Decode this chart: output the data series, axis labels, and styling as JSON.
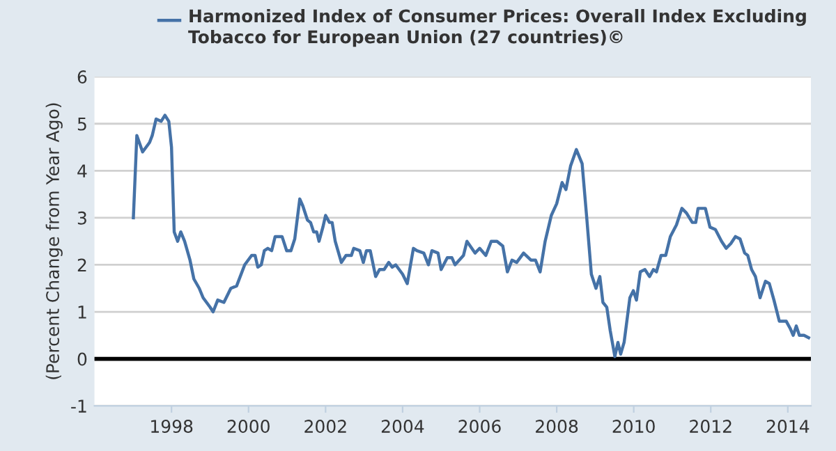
{
  "chart_data": {
    "type": "line",
    "ylabel": "(Percent Change from Year Ago)",
    "x": [
      1997.01,
      1997.1,
      1997.25,
      1997.43,
      1997.5,
      1997.6,
      1997.73,
      1997.83,
      1997.93,
      1998.0,
      1998.07,
      1998.16,
      1998.24,
      1998.34,
      1998.48,
      1998.58,
      1998.72,
      1998.82,
      1999.0,
      1999.08,
      1999.2,
      1999.36,
      1999.54,
      1999.69,
      1999.9,
      2000.08,
      2000.17,
      2000.24,
      2000.33,
      2000.41,
      2000.5,
      2000.6,
      2000.69,
      2000.87,
      2000.99,
      2001.1,
      2001.2,
      2001.33,
      2001.41,
      2001.53,
      2001.61,
      2001.69,
      2001.77,
      2001.83,
      2001.93,
      2002.0,
      2002.1,
      2002.17,
      2002.25,
      2002.41,
      2002.53,
      2002.67,
      2002.73,
      2002.89,
      2002.98,
      2003.06,
      2003.16,
      2003.3,
      2003.4,
      2003.52,
      2003.64,
      2003.73,
      2003.82,
      2004.0,
      2004.12,
      2004.28,
      2004.37,
      2004.55,
      2004.67,
      2004.76,
      2004.92,
      2005.0,
      2005.16,
      2005.28,
      2005.36,
      2005.58,
      2005.67,
      2005.88,
      2006.0,
      2006.16,
      2006.3,
      2006.45,
      2006.6,
      2006.72,
      2006.84,
      2006.96,
      2007.14,
      2007.33,
      2007.45,
      2007.57,
      2007.7,
      2007.86,
      2008.0,
      2008.14,
      2008.24,
      2008.36,
      2008.51,
      2008.66,
      2008.78,
      2008.9,
      2009.02,
      2009.12,
      2009.2,
      2009.3,
      2009.39,
      2009.51,
      2009.59,
      2009.66,
      2009.75,
      2009.9,
      2009.99,
      2010.07,
      2010.17,
      2010.29,
      2010.41,
      2010.51,
      2010.59,
      2010.71,
      2010.83,
      2010.95,
      2011.11,
      2011.25,
      2011.37,
      2011.52,
      2011.61,
      2011.67,
      2011.86,
      2011.98,
      2012.12,
      2012.28,
      2012.4,
      2012.52,
      2012.64,
      2012.76,
      2012.88,
      2012.96,
      2013.06,
      2013.16,
      2013.28,
      2013.42,
      2013.52,
      2013.64,
      2013.78,
      2013.96,
      2014.06,
      2014.14,
      2014.22,
      2014.3,
      2014.42,
      2014.54
    ],
    "series": [
      {
        "name": "Harmonized Index of Consumer Prices: Overall Index Excluding Tobacco for European Union (27 countries)©",
        "color": "#4572a7",
        "values": [
          3.0,
          4.75,
          4.4,
          4.6,
          4.75,
          5.1,
          5.05,
          5.18,
          5.05,
          4.5,
          2.7,
          2.5,
          2.7,
          2.5,
          2.1,
          1.7,
          1.5,
          1.3,
          1.1,
          1.0,
          1.25,
          1.2,
          1.5,
          1.55,
          2.0,
          2.2,
          2.2,
          1.95,
          2.0,
          2.3,
          2.35,
          2.3,
          2.6,
          2.6,
          2.3,
          2.3,
          2.55,
          3.4,
          3.25,
          2.95,
          2.9,
          2.7,
          2.7,
          2.5,
          2.8,
          3.05,
          2.9,
          2.9,
          2.5,
          2.05,
          2.2,
          2.2,
          2.35,
          2.3,
          2.05,
          2.3,
          2.3,
          1.75,
          1.9,
          1.9,
          2.05,
          1.95,
          2.0,
          1.8,
          1.6,
          2.35,
          2.3,
          2.25,
          2.0,
          2.3,
          2.25,
          1.9,
          2.15,
          2.15,
          2.0,
          2.2,
          2.5,
          2.25,
          2.35,
          2.2,
          2.5,
          2.5,
          2.4,
          1.85,
          2.1,
          2.05,
          2.25,
          2.1,
          2.1,
          1.85,
          2.5,
          3.05,
          3.3,
          3.75,
          3.6,
          4.1,
          4.45,
          4.15,
          3.0,
          1.8,
          1.5,
          1.75,
          1.2,
          1.1,
          0.6,
          0.05,
          0.35,
          0.1,
          0.35,
          1.3,
          1.45,
          1.25,
          1.85,
          1.9,
          1.75,
          1.9,
          1.85,
          2.2,
          2.2,
          2.6,
          2.85,
          3.2,
          3.1,
          2.9,
          2.9,
          3.2,
          3.2,
          2.8,
          2.75,
          2.5,
          2.35,
          2.45,
          2.6,
          2.55,
          2.25,
          2.2,
          1.9,
          1.75,
          1.3,
          1.65,
          1.6,
          1.25,
          0.8,
          0.8,
          0.65,
          0.5,
          0.7,
          0.5,
          0.5,
          0.45
        ]
      }
    ],
    "xlim": [
      1996,
      2014.6
    ],
    "xticks": [
      1998,
      2000,
      2002,
      2004,
      2006,
      2008,
      2010,
      2012,
      2014
    ],
    "ylim": [
      -1,
      6
    ],
    "yticks": [
      -1,
      0,
      1,
      2,
      3,
      4,
      5,
      6
    ],
    "ref_lines": [
      {
        "axis": "y",
        "value": 0,
        "color": "#000000"
      }
    ],
    "grid": "y",
    "legend": "top left",
    "marker": "none",
    "line_style": "solid"
  }
}
